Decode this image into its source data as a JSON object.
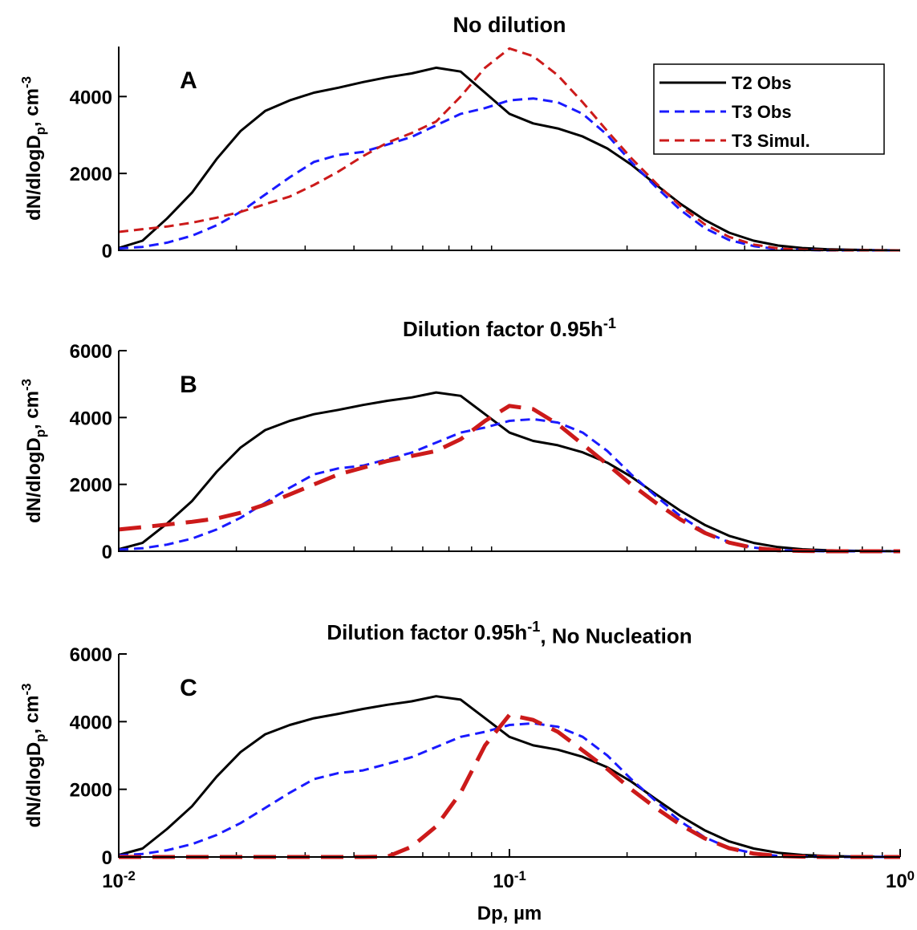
{
  "chart_data": [
    {
      "type": "line",
      "title": "No dilution",
      "panel_label": "A",
      "ylabel": "dN/dlogD_p, cm^-3",
      "xscale": "log",
      "xlim": [
        0.01,
        1
      ],
      "ylim": [
        0,
        5300
      ],
      "yticks": [
        0,
        2000,
        4000
      ],
      "legend": "upper right",
      "x": [
        0.01,
        0.0115,
        0.0133,
        0.0154,
        0.0178,
        0.0205,
        0.0237,
        0.0274,
        0.0316,
        0.0365,
        0.0422,
        0.0487,
        0.0562,
        0.0649,
        0.075,
        0.0866,
        0.1,
        0.115,
        0.133,
        0.154,
        0.178,
        0.205,
        0.237,
        0.274,
        0.316,
        0.365,
        0.422,
        0.487,
        0.562,
        0.649,
        0.75,
        0.866,
        1.0
      ],
      "series": [
        {
          "name": "T2 Obs",
          "color": "#000000",
          "linestyle": "solid",
          "linewidth": 3,
          "values": [
            60,
            250,
            830,
            1500,
            2375,
            3100,
            3625,
            3900,
            4100,
            4230,
            4375,
            4500,
            4600,
            4750,
            4650,
            4100,
            3550,
            3300,
            3170,
            2960,
            2650,
            2230,
            1710,
            1210,
            790,
            460,
            250,
            125,
            60,
            30,
            15,
            5,
            0
          ]
        },
        {
          "name": "T3 Obs",
          "color": "#1a1aff",
          "linestyle": "dashed",
          "linewidth": 3,
          "values": [
            50,
            90,
            200,
            380,
            650,
            1000,
            1450,
            1900,
            2300,
            2480,
            2560,
            2750,
            2950,
            3250,
            3550,
            3700,
            3900,
            3950,
            3850,
            3550,
            3000,
            2300,
            1650,
            1050,
            580,
            270,
            110,
            30,
            10,
            0,
            0,
            0,
            0
          ]
        },
        {
          "name": "T3 Simul.",
          "color": "#cc1a1a",
          "linestyle": "dashed",
          "linewidth": 3,
          "values": [
            480,
            550,
            620,
            720,
            850,
            1000,
            1200,
            1400,
            1700,
            2050,
            2450,
            2800,
            3050,
            3350,
            4000,
            4750,
            5250,
            5050,
            4550,
            3850,
            3100,
            2400,
            1750,
            1150,
            680,
            350,
            150,
            50,
            15,
            5,
            0,
            0,
            0
          ]
        }
      ]
    },
    {
      "type": "line",
      "title": "Dilution factor 0.95h^-1",
      "panel_label": "B",
      "ylabel": "dN/dlogD_p, cm^-3",
      "xscale": "log",
      "xlim": [
        0.01,
        1
      ],
      "ylim": [
        0,
        6000
      ],
      "yticks": [
        0,
        2000,
        4000,
        6000
      ],
      "x": [
        0.01,
        0.0115,
        0.0133,
        0.0154,
        0.0178,
        0.0205,
        0.0237,
        0.0274,
        0.0316,
        0.0365,
        0.0422,
        0.0487,
        0.0562,
        0.0649,
        0.075,
        0.0866,
        0.1,
        0.115,
        0.133,
        0.154,
        0.178,
        0.205,
        0.237,
        0.274,
        0.316,
        0.365,
        0.422,
        0.487,
        0.562,
        0.649,
        0.75,
        0.866,
        1.0
      ],
      "series": [
        {
          "color": "#000000",
          "linestyle": "solid",
          "linewidth": 3,
          "values": [
            60,
            250,
            830,
            1500,
            2375,
            3100,
            3625,
            3900,
            4100,
            4230,
            4375,
            4500,
            4600,
            4750,
            4650,
            4100,
            3550,
            3300,
            3170,
            2960,
            2650,
            2230,
            1710,
            1210,
            790,
            460,
            250,
            125,
            60,
            30,
            15,
            5,
            0
          ]
        },
        {
          "color": "#1a1aff",
          "linestyle": "dashed",
          "linewidth": 3,
          "values": [
            50,
            90,
            200,
            380,
            650,
            1000,
            1450,
            1900,
            2300,
            2480,
            2560,
            2750,
            2950,
            3250,
            3550,
            3700,
            3900,
            3950,
            3850,
            3550,
            3000,
            2300,
            1650,
            1050,
            580,
            270,
            110,
            30,
            10,
            0,
            0,
            0,
            0
          ]
        },
        {
          "color": "#cc1a1a",
          "linestyle": "dashed",
          "linewidth": 5,
          "values": [
            650,
            720,
            800,
            880,
            980,
            1150,
            1400,
            1700,
            2000,
            2300,
            2500,
            2700,
            2850,
            3000,
            3350,
            3900,
            4350,
            4250,
            3800,
            3200,
            2600,
            2000,
            1450,
            950,
            550,
            260,
            100,
            30,
            10,
            0,
            0,
            0,
            0
          ]
        }
      ]
    },
    {
      "type": "line",
      "title": "Dilution factor 0.95h^-1, No Nucleation",
      "panel_label": "C",
      "ylabel": "dN/dlogD_p, cm^-3",
      "xlabel": "Dp, µm",
      "xscale": "log",
      "xlim": [
        0.01,
        1
      ],
      "ylim": [
        0,
        6000
      ],
      "yticks": [
        0,
        2000,
        4000,
        6000
      ],
      "xticks": [
        {
          "value": 0.01,
          "label": "10^-2"
        },
        {
          "value": 0.1,
          "label": "10^-1"
        },
        {
          "value": 1,
          "label": "10^0"
        }
      ],
      "x": [
        0.01,
        0.0115,
        0.0133,
        0.0154,
        0.0178,
        0.0205,
        0.0237,
        0.0274,
        0.0316,
        0.0365,
        0.0422,
        0.0487,
        0.0562,
        0.0649,
        0.075,
        0.0866,
        0.1,
        0.115,
        0.133,
        0.154,
        0.178,
        0.205,
        0.237,
        0.274,
        0.316,
        0.365,
        0.422,
        0.487,
        0.562,
        0.649,
        0.75,
        0.866,
        1.0
      ],
      "series": [
        {
          "color": "#000000",
          "linestyle": "solid",
          "linewidth": 3,
          "values": [
            60,
            250,
            830,
            1500,
            2375,
            3100,
            3625,
            3900,
            4100,
            4230,
            4375,
            4500,
            4600,
            4750,
            4650,
            4100,
            3550,
            3300,
            3170,
            2960,
            2650,
            2230,
            1710,
            1210,
            790,
            460,
            250,
            125,
            60,
            30,
            15,
            5,
            0
          ]
        },
        {
          "color": "#1a1aff",
          "linestyle": "dashed",
          "linewidth": 3,
          "values": [
            50,
            90,
            200,
            380,
            650,
            1000,
            1450,
            1900,
            2300,
            2480,
            2560,
            2750,
            2950,
            3250,
            3550,
            3700,
            3900,
            3950,
            3850,
            3550,
            3000,
            2300,
            1650,
            1050,
            580,
            270,
            110,
            30,
            10,
            0,
            0,
            0,
            0
          ]
        },
        {
          "color": "#cc1a1a",
          "linestyle": "dashed",
          "linewidth": 5,
          "values": [
            0,
            0,
            0,
            0,
            0,
            0,
            0,
            0,
            0,
            0,
            0,
            10,
            300,
            900,
            1900,
            3300,
            4200,
            4050,
            3700,
            3150,
            2600,
            2000,
            1450,
            950,
            550,
            260,
            100,
            30,
            10,
            0,
            0,
            0,
            0
          ]
        }
      ]
    }
  ]
}
